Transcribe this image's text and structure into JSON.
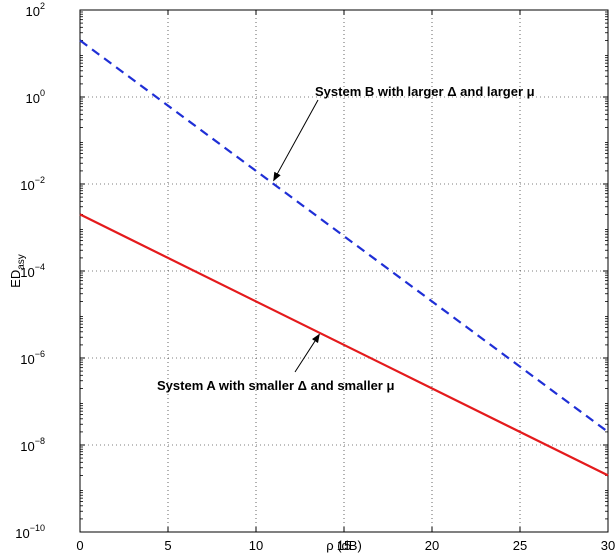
{
  "chart_data": {
    "type": "line",
    "xlabel": "ρ (dB)",
    "ylabel_main": "ED",
    "ylabel_sub": "asy",
    "xlim": [
      0,
      30
    ],
    "ylim": [
      1e-10,
      100
    ],
    "yscale": "log",
    "grid": true,
    "x_ticks": [
      "0",
      "5",
      "10",
      "15",
      "20",
      "25",
      "30"
    ],
    "y_ticks": [
      {
        "base": "10",
        "exp": "−10",
        "value": 1e-10
      },
      {
        "base": "10",
        "exp": "−8",
        "value": 1e-08
      },
      {
        "base": "10",
        "exp": "−6",
        "value": 1e-06
      },
      {
        "base": "10",
        "exp": "−4",
        "value": 0.0001
      },
      {
        "base": "10",
        "exp": "−2",
        "value": 0.01
      },
      {
        "base": "10",
        "exp": "0",
        "value": 1
      },
      {
        "base": "10",
        "exp": "2",
        "value": 100
      }
    ],
    "series": [
      {
        "key": "system-a",
        "color": "#e41a1c",
        "style": "solid",
        "x": [
          0,
          30
        ],
        "y": [
          0.002,
          2e-09
        ]
      },
      {
        "key": "system-b",
        "color": "#1f2fd6",
        "style": "dashed",
        "x": [
          0,
          30
        ],
        "y": [
          20,
          2e-08
        ]
      }
    ],
    "annotations": [
      {
        "key": "system-b",
        "text": "System B with larger Δ and larger μ",
        "arrow_to": [
          11,
          0.012
        ]
      },
      {
        "key": "system-a",
        "text": "System A with smaller Δ and smaller μ",
        "arrow_to": [
          13.6,
          3.5e-06
        ]
      }
    ]
  }
}
